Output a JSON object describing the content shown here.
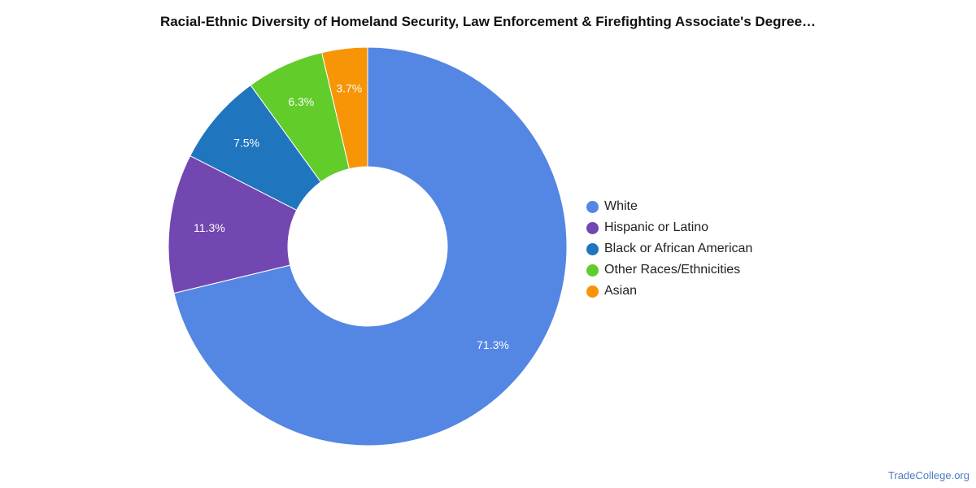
{
  "chart_data": {
    "type": "pie",
    "variant": "donut",
    "title": "Racial-Ethnic Diversity of Homeland Security, Law Enforcement & Firefighting Associate's Degree…",
    "categories": [
      "White",
      "Hispanic or Latino",
      "Black or African American",
      "Other Races/Ethnicities",
      "Asian"
    ],
    "values": [
      71.3,
      11.3,
      7.5,
      6.3,
      3.7
    ],
    "labels": [
      "71.3%",
      "11.3%",
      "7.5%",
      "6.3%",
      "3.7%"
    ],
    "colors": [
      "#5486e3",
      "#7347b1",
      "#1f75be",
      "#62cc2b",
      "#f79506"
    ],
    "legend_position": "right"
  },
  "footer": {
    "source": "TradeCollege.org"
  }
}
